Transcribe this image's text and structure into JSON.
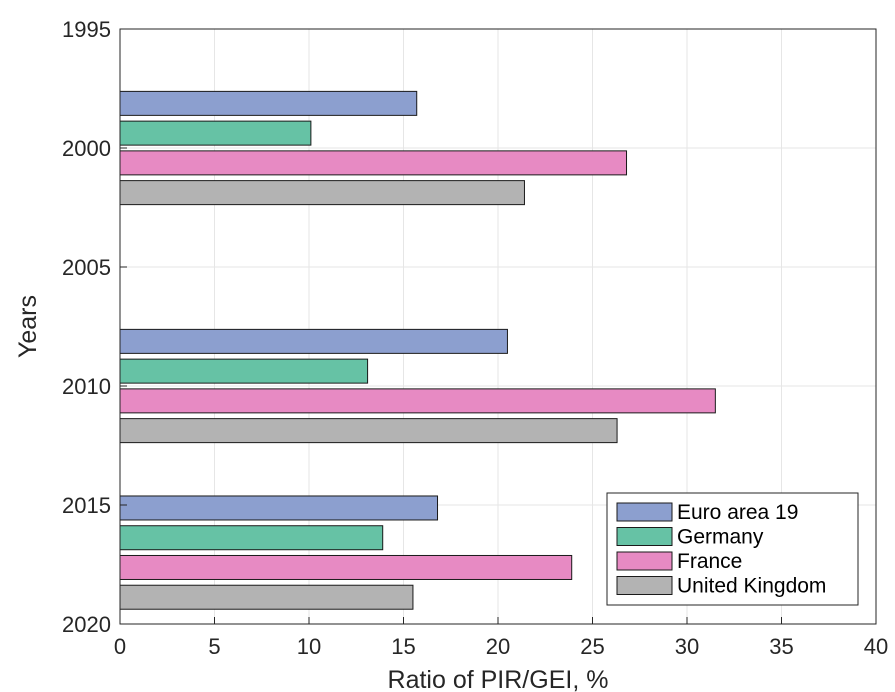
{
  "chart_data": {
    "type": "bar",
    "orientation": "horizontal",
    "xlabel": "Ratio of PIR/GEI, %",
    "ylabel": "Years",
    "xlim": [
      0,
      40
    ],
    "ylim": [
      1995,
      2020
    ],
    "y_reversed": true,
    "x_ticks": [
      "0",
      "5",
      "10",
      "15",
      "20",
      "25",
      "30",
      "35",
      "40"
    ],
    "y_ticks": [
      "1995",
      "2000",
      "2005",
      "2010",
      "2015",
      "2020"
    ],
    "grid": true,
    "legend_position": "bottom-right",
    "categories": [
      2000,
      2010,
      2017
    ],
    "series": [
      {
        "name": "Euro area 19",
        "color": "#8c9fcf",
        "values": [
          15.7,
          20.5,
          16.8
        ]
      },
      {
        "name": "Germany",
        "color": "#66c2a5",
        "values": [
          10.1,
          13.1,
          13.9
        ]
      },
      {
        "name": "France",
        "color": "#e78ac3",
        "values": [
          26.8,
          31.5,
          23.9
        ]
      },
      {
        "name": "United Kingdom",
        "color": "#b3b3b3",
        "values": [
          21.4,
          26.3,
          15.5
        ]
      }
    ]
  }
}
